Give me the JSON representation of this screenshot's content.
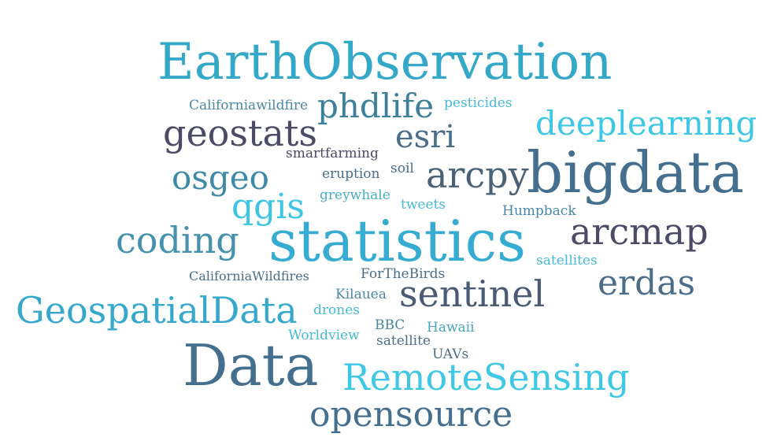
{
  "words": [
    {
      "text": "EarthObservation",
      "color": "#33a8c8"
    },
    {
      "text": "Californiawildfire",
      "color": "#4a87a3"
    },
    {
      "text": "phdlife",
      "color": "#3d809c"
    },
    {
      "text": "pesticides",
      "color": "#47bbd6"
    },
    {
      "text": "deeplearning",
      "color": "#3fc8e6"
    },
    {
      "text": "geostats",
      "color": "#4b4b66"
    },
    {
      "text": "esri",
      "color": "#4a6e8a"
    },
    {
      "text": "smartfarming",
      "color": "#4b4b66"
    },
    {
      "text": "bigdata",
      "color": "#456f8e"
    },
    {
      "text": "osgeo",
      "color": "#3d8aa8"
    },
    {
      "text": "eruption",
      "color": "#4a6e8a"
    },
    {
      "text": "soil",
      "color": "#4a6e8a"
    },
    {
      "text": "arcpy",
      "color": "#4a6075"
    },
    {
      "text": "qgis",
      "color": "#3dc5e4"
    },
    {
      "text": "greywhale",
      "color": "#47b0c8"
    },
    {
      "text": "tweets",
      "color": "#47bbd6"
    },
    {
      "text": "Humpback",
      "color": "#4a87a3"
    },
    {
      "text": "coding",
      "color": "#4691ad"
    },
    {
      "text": "statistics",
      "color": "#36acd2"
    },
    {
      "text": "arcmap",
      "color": "#4b4b66"
    },
    {
      "text": "satellites",
      "color": "#47bbd6"
    },
    {
      "text": "CaliforniaWildfires",
      "color": "#4a6e8a"
    },
    {
      "text": "ForTheBirds",
      "color": "#4a6e8a"
    },
    {
      "text": "erdas",
      "color": "#4a6e8a"
    },
    {
      "text": "Kilauea",
      "color": "#4a87a3"
    },
    {
      "text": "sentinel",
      "color": "#4b5a75"
    },
    {
      "text": "drones",
      "color": "#47bbd6"
    },
    {
      "text": "GeospatialData",
      "color": "#36a8cc"
    },
    {
      "text": "BBC",
      "color": "#4a87a3"
    },
    {
      "text": "Hawaii",
      "color": "#47a6c0"
    },
    {
      "text": "Worldview",
      "color": "#47bbd6"
    },
    {
      "text": "satellite",
      "color": "#4a6e8a"
    },
    {
      "text": "UAVs",
      "color": "#4a6e8a"
    },
    {
      "text": "Data",
      "color": "#456f8e"
    },
    {
      "text": "RemoteSensing",
      "color": "#3fc8e6"
    },
    {
      "text": "opensource",
      "color": "#456f8e"
    }
  ]
}
